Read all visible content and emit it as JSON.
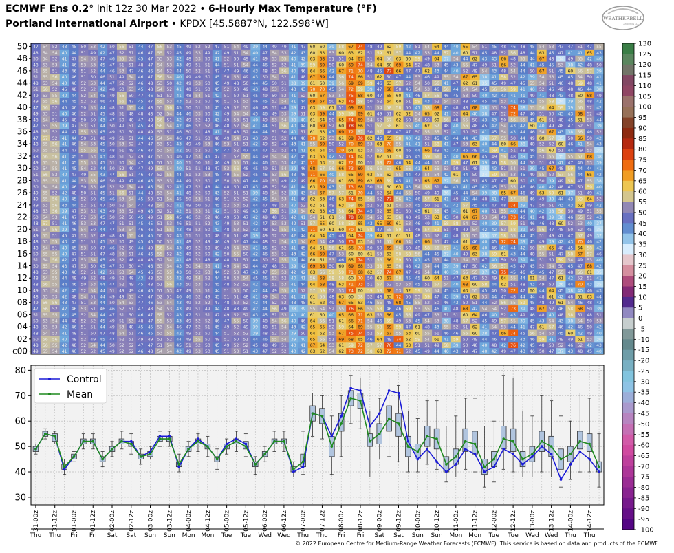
{
  "header": {
    "line1_bold_a": "ECMWF Ens 0.2",
    "line1_deg": "°",
    "line1_init": " Init 12z 30 Mar 2022 • ",
    "line1_bold_b": "6-Hourly Max Temperature (°F)",
    "line2_bold": "Portland International Airport",
    "line2_rest": " • KPDX [45.5887°N, 122.598°W]"
  },
  "logo": {
    "text": "WEATHERBELL",
    "sub": "Analytics LLC"
  },
  "footer": "© 2022 European Centre for Medium-Range Weather Forecasts (ECMWF). This service is based on data and products of the ECMWF.",
  "colors": {
    "control": "#1a1ad6",
    "mean": "#1f8a1f",
    "box_fill": "#b0c4de",
    "plot_bg": "#f2f2f2"
  },
  "chart_data": [
    {
      "type": "heatmap",
      "title": "",
      "y_tick_labels": [
        "50",
        "48",
        "46",
        "44",
        "42",
        "40",
        "38",
        "36",
        "34",
        "32",
        "30",
        "28",
        "26",
        "24",
        "22",
        "20",
        "18",
        "16",
        "14",
        "12",
        "10",
        "08",
        "06",
        "04",
        "02",
        "c00"
      ],
      "members": 51,
      "x_tick_labels": [
        "31-00z",
        "31-12z",
        "01-00z",
        "01-12z",
        "02-00z",
        "02-12z",
        "03-00z",
        "03-12z",
        "04-00z",
        "04-12z",
        "05-00z",
        "05-12z",
        "06-00z",
        "06-12z",
        "07-00z",
        "07-12z",
        "08-00z",
        "08-12z",
        "09-00z",
        "09-12z",
        "10-00z",
        "10-12z",
        "11-00z",
        "11-12z",
        "12-00z",
        "12-12z",
        "13-00z",
        "13-12z",
        "14-00z",
        "14-12z"
      ],
      "day_labels": [
        "Thu",
        "Thu",
        "Fri",
        "Fri",
        "Sat",
        "Sat",
        "Sun",
        "Sun",
        "Mon",
        "Mon",
        "Tue",
        "Tue",
        "Wed",
        "Wed",
        "Thu",
        "Thu",
        "Fri",
        "Fri",
        "Sat",
        "Sat",
        "Sun",
        "Sun",
        "Mon",
        "Mon",
        "Tue",
        "Tue",
        "Wed",
        "Wed",
        "Thu",
        "Thu"
      ],
      "note": "cells show each member's temperature in °F; member rows 50 (top) to control c00 (bottom)"
    },
    {
      "type": "box_line",
      "ylim": [
        27,
        82
      ],
      "y_ticks": [
        30,
        40,
        50,
        60,
        70,
        80
      ],
      "legend": [
        "Control",
        "Mean"
      ],
      "legend_position": "top-left",
      "grid": true,
      "steps": 60,
      "control": [
        49,
        55,
        54,
        41,
        46,
        52,
        52,
        45,
        49,
        52,
        52,
        46,
        48,
        54,
        54,
        42,
        49,
        53,
        50,
        45,
        51,
        53,
        51,
        43,
        47,
        52,
        52,
        40,
        42,
        63,
        62,
        54,
        62,
        73,
        72,
        58,
        63,
        72,
        71,
        52,
        45,
        49,
        44,
        40,
        43,
        49,
        47,
        40,
        42,
        49,
        47,
        43,
        46,
        50,
        47,
        37,
        43,
        48,
        45,
        40
      ],
      "mean": [
        49,
        55,
        54,
        42,
        46,
        52,
        52,
        45,
        49,
        52,
        51,
        46,
        47,
        53,
        53,
        43,
        49,
        52,
        50,
        45,
        50,
        52,
        50,
        43,
        47,
        52,
        52,
        41,
        44,
        63,
        62,
        50,
        59,
        69,
        68,
        52,
        55,
        61,
        59,
        50,
        48,
        54,
        53,
        43,
        46,
        52,
        51,
        42,
        45,
        53,
        52,
        45,
        47,
        52,
        50,
        45,
        47,
        52,
        51,
        42
      ],
      "box_q1": [
        48,
        54,
        52,
        41,
        45,
        51,
        51,
        44,
        48,
        51,
        50,
        45,
        46,
        52,
        52,
        42,
        48,
        51,
        49,
        44,
        49,
        51,
        49,
        42,
        46,
        51,
        51,
        40,
        42,
        60,
        59,
        46,
        56,
        66,
        65,
        50,
        51,
        56,
        54,
        46,
        45,
        50,
        49,
        40,
        43,
        48,
        47,
        39,
        42,
        49,
        48,
        42,
        44,
        48,
        46,
        41,
        44,
        49,
        48,
        40
      ],
      "box_q3": [
        50,
        56,
        55,
        43,
        47,
        53,
        53,
        46,
        50,
        53,
        52,
        47,
        48,
        54,
        54,
        44,
        50,
        53,
        51,
        46,
        51,
        53,
        52,
        44,
        48,
        53,
        53,
        42,
        47,
        66,
        65,
        54,
        63,
        72,
        71,
        55,
        59,
        66,
        63,
        54,
        51,
        58,
        57,
        46,
        49,
        57,
        56,
        45,
        48,
        58,
        57,
        48,
        50,
        56,
        54,
        49,
        50,
        56,
        55,
        44
      ],
      "whisk_lo": [
        47,
        53,
        51,
        39,
        44,
        49,
        49,
        42,
        46,
        49,
        47,
        43,
        45,
        50,
        50,
        40,
        46,
        48,
        46,
        41,
        47,
        48,
        46,
        39,
        44,
        48,
        48,
        38,
        39,
        54,
        53,
        39,
        46,
        59,
        57,
        38,
        45,
        46,
        44,
        40,
        40,
        43,
        41,
        36,
        38,
        41,
        40,
        34,
        36,
        41,
        40,
        38,
        38,
        40,
        38,
        34,
        37,
        40,
        40,
        34
      ],
      "whisk_hi": [
        51,
        57,
        56,
        45,
        48,
        55,
        55,
        48,
        52,
        56,
        55,
        49,
        50,
        56,
        56,
        47,
        52,
        55,
        54,
        49,
        53,
        56,
        55,
        46,
        50,
        56,
        56,
        44,
        56,
        71,
        70,
        62,
        70,
        78,
        77,
        64,
        69,
        77,
        74,
        64,
        61,
        68,
        68,
        58,
        62,
        69,
        69,
        58,
        60,
        78,
        77,
        64,
        62,
        70,
        68,
        62,
        60,
        71,
        69,
        55
      ]
    }
  ]
}
